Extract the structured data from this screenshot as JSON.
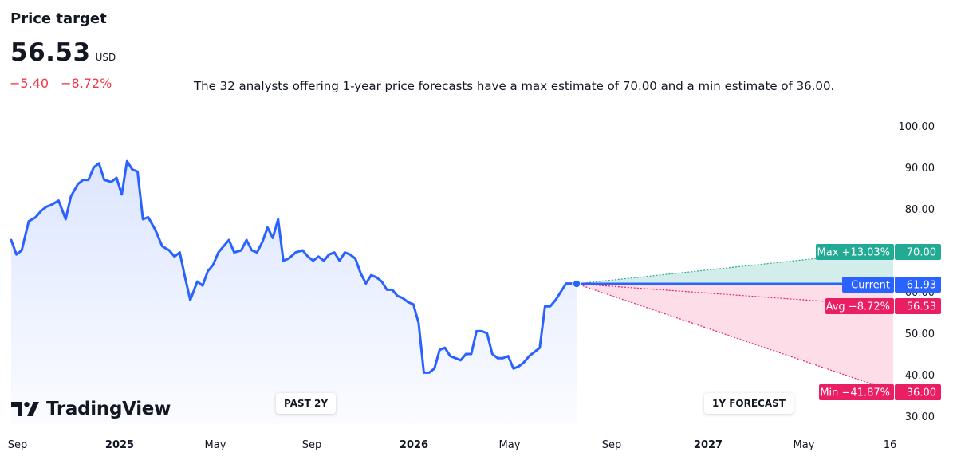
{
  "header": {
    "title": "Price target",
    "price": "56.53",
    "currency": "USD",
    "change_abs": "−5.40",
    "change_pct": "−8.72%",
    "summary": "The 32 analysts offering 1-year price forecasts have a max estimate of 70.00 and a min estimate of 36.00."
  },
  "logo": {
    "text": "TradingView",
    "icon": "tradingview-logo-icon"
  },
  "periods": {
    "past": "PAST 2Y",
    "forecast": "1Y FORECAST"
  },
  "colors": {
    "line": "#2962ff",
    "max": "#22ab94",
    "min": "#e91e63",
    "avg": "#e91e63",
    "current": "#2962ff",
    "change": "#f23645"
  },
  "chart_data": {
    "type": "line",
    "x_axis_labels": [
      "Sep",
      "2025",
      "May",
      "Sep",
      "2026",
      "May",
      "Sep",
      "2027",
      "May",
      "16"
    ],
    "y_axis_labels": [
      "100.00",
      "90.00",
      "80.00",
      "70.00",
      "60.00",
      "50.00",
      "40.00",
      "30.00"
    ],
    "ylim": [
      27.5,
      102
    ],
    "x_range": [
      0,
      25
    ],
    "series": [
      {
        "points": [
          [
            0.0,
            72.5
          ],
          [
            0.15,
            69
          ],
          [
            0.3,
            70
          ],
          [
            0.5,
            77
          ],
          [
            0.7,
            78
          ],
          [
            0.85,
            79.5
          ],
          [
            1.0,
            80.5
          ],
          [
            1.15,
            81
          ],
          [
            1.35,
            82
          ],
          [
            1.55,
            77.5
          ],
          [
            1.7,
            83
          ],
          [
            1.9,
            86
          ],
          [
            2.05,
            87
          ],
          [
            2.2,
            87
          ],
          [
            2.35,
            90
          ],
          [
            2.5,
            91
          ],
          [
            2.65,
            87
          ],
          [
            2.85,
            86.5
          ],
          [
            3.0,
            87.5
          ],
          [
            3.15,
            83.5
          ],
          [
            3.3,
            91.5
          ],
          [
            3.45,
            89.5
          ],
          [
            3.6,
            89
          ],
          [
            3.75,
            77.5
          ],
          [
            3.9,
            78
          ],
          [
            4.1,
            75
          ],
          [
            4.3,
            71
          ],
          [
            4.5,
            70
          ],
          [
            4.65,
            68.5
          ],
          [
            4.8,
            69.5
          ],
          [
            4.95,
            63.5
          ],
          [
            5.1,
            58
          ],
          [
            5.3,
            62.5
          ],
          [
            5.45,
            61.5
          ],
          [
            5.6,
            65
          ],
          [
            5.75,
            66.5
          ],
          [
            5.9,
            69.5
          ],
          [
            6.05,
            71
          ],
          [
            6.2,
            72.5
          ],
          [
            6.35,
            69.5
          ],
          [
            6.55,
            70
          ],
          [
            6.7,
            72.5
          ],
          [
            6.85,
            70
          ],
          [
            7.0,
            69.5
          ],
          [
            7.15,
            72
          ],
          [
            7.3,
            75.5
          ],
          [
            7.45,
            73
          ],
          [
            7.6,
            77.5
          ],
          [
            7.75,
            67.5
          ],
          [
            7.9,
            68
          ],
          [
            8.1,
            69.5
          ],
          [
            8.3,
            70
          ],
          [
            8.45,
            68.5
          ],
          [
            8.6,
            67.5
          ],
          [
            8.75,
            68.5
          ],
          [
            8.9,
            67.5
          ],
          [
            9.05,
            69
          ],
          [
            9.2,
            69.5
          ],
          [
            9.35,
            67.5
          ],
          [
            9.5,
            69.5
          ],
          [
            9.65,
            69
          ],
          [
            9.8,
            68
          ],
          [
            9.95,
            64.5
          ],
          [
            10.1,
            62
          ],
          [
            10.25,
            64
          ],
          [
            10.4,
            63.5
          ],
          [
            10.55,
            62.5
          ],
          [
            10.7,
            60.5
          ],
          [
            10.85,
            60.5
          ],
          [
            11.0,
            59
          ],
          [
            11.15,
            58.5
          ],
          [
            11.3,
            57.5
          ],
          [
            11.45,
            57
          ],
          [
            11.6,
            52.5
          ],
          [
            11.75,
            40.5
          ],
          [
            11.9,
            40.5
          ],
          [
            12.05,
            41.5
          ],
          [
            12.2,
            46
          ],
          [
            12.35,
            46.5
          ],
          [
            12.5,
            44.5
          ],
          [
            12.65,
            44
          ],
          [
            12.8,
            43.5
          ],
          [
            12.95,
            45
          ],
          [
            13.1,
            45
          ],
          [
            13.25,
            50.5
          ],
          [
            13.4,
            50.5
          ],
          [
            13.55,
            50
          ],
          [
            13.7,
            45
          ],
          [
            13.85,
            44
          ],
          [
            14.0,
            44
          ],
          [
            14.15,
            44.5
          ],
          [
            14.3,
            41.5
          ],
          [
            14.45,
            42
          ],
          [
            14.6,
            43
          ],
          [
            14.75,
            44.5
          ],
          [
            14.9,
            45.5
          ],
          [
            15.05,
            46.5
          ],
          [
            15.2,
            56.5
          ],
          [
            15.35,
            56.5
          ],
          [
            15.5,
            58
          ],
          [
            15.65,
            60
          ],
          [
            15.8,
            62
          ],
          [
            15.95,
            62
          ],
          [
            16.1,
            61.93
          ]
        ]
      }
    ],
    "current": {
      "label": "Current",
      "value": "61.93",
      "y": 61.93
    },
    "targets": [
      {
        "key": "max",
        "label": "Max +13.03%",
        "value": "70.00",
        "y": 70.0
      },
      {
        "key": "avg",
        "label": "Avg −8.72%",
        "value": "56.53",
        "y": 56.53
      },
      {
        "key": "min",
        "label": "Min −41.87%",
        "value": "36.00",
        "y": 36.0
      }
    ],
    "forecast_start_x": 16.1,
    "forecast_end_x": 24.0
  }
}
